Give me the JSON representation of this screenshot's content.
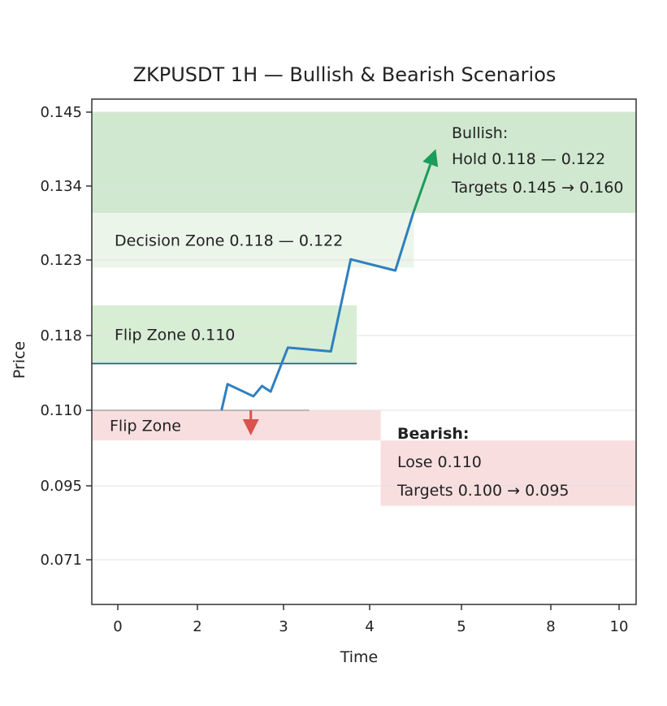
{
  "chart_data": {
    "type": "line",
    "title": "ZKPUSDT 1H — Bullish & Bearish Scenarios",
    "xlabel": "Time",
    "ylabel": "Price",
    "x_ticks": [
      "0",
      "2",
      "3",
      "4",
      "5",
      "8",
      "10"
    ],
    "y_ticks": [
      "0.145",
      "0.134",
      "0.123",
      "0.118",
      "0.110",
      "0.095",
      "0.071"
    ],
    "grid": "horizontal",
    "series": [
      {
        "color": "#2f7fbf",
        "points": [
          [
            2.28,
            0.11
          ],
          [
            2.35,
            0.1128
          ],
          [
            2.65,
            0.1115
          ],
          [
            2.75,
            0.1126
          ],
          [
            2.85,
            0.112
          ],
          [
            3.05,
            0.1167
          ],
          [
            3.55,
            0.1163
          ],
          [
            3.78,
            0.1231
          ],
          [
            4.28,
            0.1223
          ],
          [
            4.48,
            0.1302
          ]
        ]
      }
    ],
    "bullish_arrow": {
      "from": [
        4.48,
        0.1302
      ],
      "to": [
        4.72,
        0.1395
      ],
      "color": "#1a9c5a"
    },
    "bearish_arrow": {
      "from": [
        2.62,
        0.11
      ],
      "to": [
        2.62,
        0.105
      ],
      "color": "#d9534f"
    },
    "zones": [
      {
        "label": "",
        "kind": "bullish-target",
        "x": [
          0,
          10
        ],
        "y": [
          0.13,
          0.145
        ],
        "color": "#cfe8cf"
      },
      {
        "label": "Decision Zone 0.118 — 0.122",
        "kind": "decision",
        "x": [
          0,
          4.48
        ],
        "y": [
          0.1225,
          0.13
        ],
        "color": "#ebf5ea"
      },
      {
        "label": "Flip Zone 0.110",
        "kind": "flip-upper",
        "x": [
          0,
          3.85
        ],
        "y": [
          0.115,
          0.12
        ],
        "color": "#d7eed5"
      },
      {
        "label": "Flip Zone",
        "kind": "flip-lower",
        "x": [
          0,
          4.12
        ],
        "y": [
          0.104,
          0.11
        ],
        "color": "#f8dede"
      },
      {
        "label": "",
        "kind": "bearish-target",
        "x": [
          4.12,
          10
        ],
        "y": [
          0.0885,
          0.104
        ],
        "color": "#f8dede"
      }
    ],
    "annotations": {
      "bullish": {
        "head": "Bullish:",
        "line1": "Hold 0.118 — 0.122",
        "line2": "Targets 0.145 → 0.160"
      },
      "bearish": {
        "head": "Bearish:",
        "line1": "Lose 0.110",
        "line2": "Targets 0.100 → 0.095"
      }
    }
  }
}
